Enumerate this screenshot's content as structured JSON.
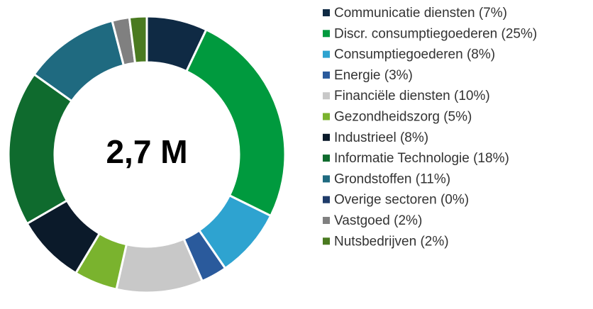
{
  "chart_data": {
    "type": "donut",
    "center_label": "2,7 M",
    "categories": [
      "Communicatie diensten (7%)",
      "Discr. consumptiegoederen (25%)",
      "Consumptiegoederen (8%)",
      "Energie (3%)",
      "Financiële diensten (10%)",
      "Gezondheidszorg (5%)",
      "Industrieel (8%)",
      "Informatie Technologie (18%)",
      "Grondstoffen (11%)",
      "Overige sectoren (0%)",
      "Vastgoed (2%)",
      "Nutsbedrijven (2%)"
    ],
    "values": [
      7,
      25,
      8,
      3,
      10,
      5,
      8,
      18,
      11,
      0,
      2,
      2
    ],
    "colors": [
      "#0f2a44",
      "#009a3e",
      "#2ea3d0",
      "#2a5a9c",
      "#c8c8c8",
      "#7ab32e",
      "#0b1a2a",
      "#0f6b2e",
      "#1f6a80",
      "#1f3c6a",
      "#808080",
      "#4a7a20"
    ],
    "legend": "right"
  }
}
